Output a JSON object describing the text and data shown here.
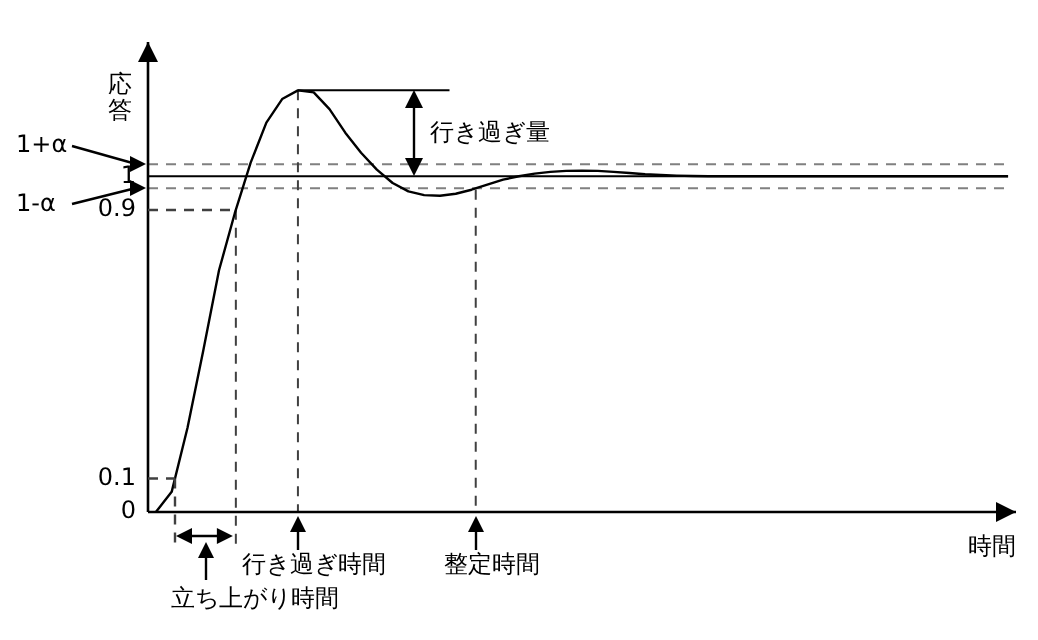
{
  "chart_data": {
    "type": "line",
    "xlabel": "時間",
    "ylabel": "応答",
    "categories": [
      null,
      null,
      null,
      null,
      null,
      null,
      null,
      null,
      null,
      null,
      null,
      null,
      null,
      null,
      null,
      null,
      null,
      null,
      null,
      null,
      null,
      null,
      null,
      null,
      null,
      null,
      null,
      null,
      null,
      null,
      null,
      null,
      null,
      null,
      null,
      null,
      null,
      null,
      null,
      null,
      null,
      null,
      null,
      null,
      null,
      null,
      null,
      null,
      null,
      null,
      null,
      null,
      null,
      null,
      null
    ],
    "series": [
      {
        "color": "#000000",
        "values": [
          0,
          0.06,
          0.25,
          0.48,
          0.72,
          0.89,
          1.04,
          1.16,
          1.23,
          1.256,
          1.25,
          1.2,
          1.13,
          1.07,
          1.02,
          0.98,
          0.955,
          0.944,
          0.942,
          0.948,
          0.96,
          0.975,
          0.99,
          1,
          1.008,
          1.013,
          1.016,
          1.017,
          1.016,
          1.013,
          1.01,
          1.006,
          1.004,
          1.002,
          1.001,
          1,
          1,
          1,
          1,
          1,
          1,
          1,
          1,
          1,
          1,
          1,
          1,
          1,
          1,
          1,
          1,
          1,
          1,
          1,
          1
        ]
      }
    ],
    "ylim": [
      0,
      1.4
    ],
    "yticks": [
      0,
      0.1,
      0.9,
      1
    ],
    "tick_labels": "y",
    "grid": false,
    "legend": false,
    "marker": "none",
    "line_style": "solid",
    "ref_lines": [
      {
        "axis": "y",
        "value": 1.036,
        "label": "1+α",
        "line_style": "dashed",
        "color": "#808080"
      },
      {
        "axis": "y",
        "value": 1,
        "line_style": "solid",
        "color": "#000000"
      },
      {
        "axis": "y",
        "value": 0.964,
        "label": "1-α",
        "line_style": "dashed",
        "color": "#808080"
      }
    ],
    "annotations": [
      "立ち上がり時間",
      "行き過ぎ時間",
      "整定時間",
      "行き過ぎ量"
    ]
  }
}
